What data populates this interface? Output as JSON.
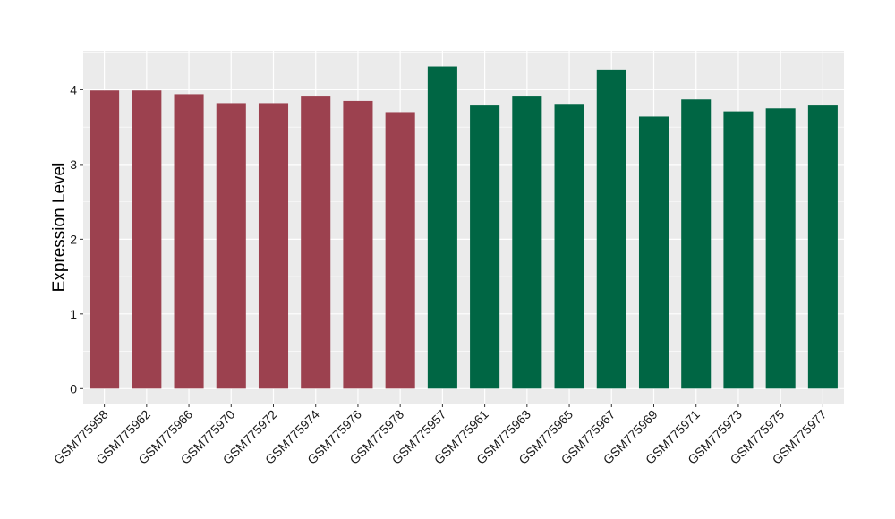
{
  "chart_data": {
    "type": "bar",
    "title": "",
    "xlabel": "",
    "ylabel": "Expression Level",
    "ylim": [
      -0.2,
      4.52
    ],
    "yticks": [
      0,
      1,
      2,
      3,
      4
    ],
    "grid": true,
    "legend": "none",
    "panel_color": "#ebebeb",
    "grid_color": "#ffffff",
    "categories": [
      "GSM775958",
      "GSM775962",
      "GSM775966",
      "GSM775970",
      "GSM775972",
      "GSM775974",
      "GSM775976",
      "GSM775978",
      "GSM775957",
      "GSM775961",
      "GSM775963",
      "GSM775965",
      "GSM775967",
      "GSM775969",
      "GSM775971",
      "GSM775973",
      "GSM775975",
      "GSM775977"
    ],
    "values": [
      3.99,
      3.99,
      3.94,
      3.82,
      3.82,
      3.92,
      3.85,
      3.7,
      4.31,
      3.8,
      3.92,
      3.81,
      4.27,
      3.64,
      3.87,
      3.71,
      3.75,
      3.8
    ],
    "bar_colors": [
      "#9c414f",
      "#9c414f",
      "#9c414f",
      "#9c414f",
      "#9c414f",
      "#9c414f",
      "#9c414f",
      "#9c414f",
      "#006644",
      "#006644",
      "#006644",
      "#006644",
      "#006644",
      "#006644",
      "#006644",
      "#006644",
      "#006644",
      "#006644"
    ]
  }
}
